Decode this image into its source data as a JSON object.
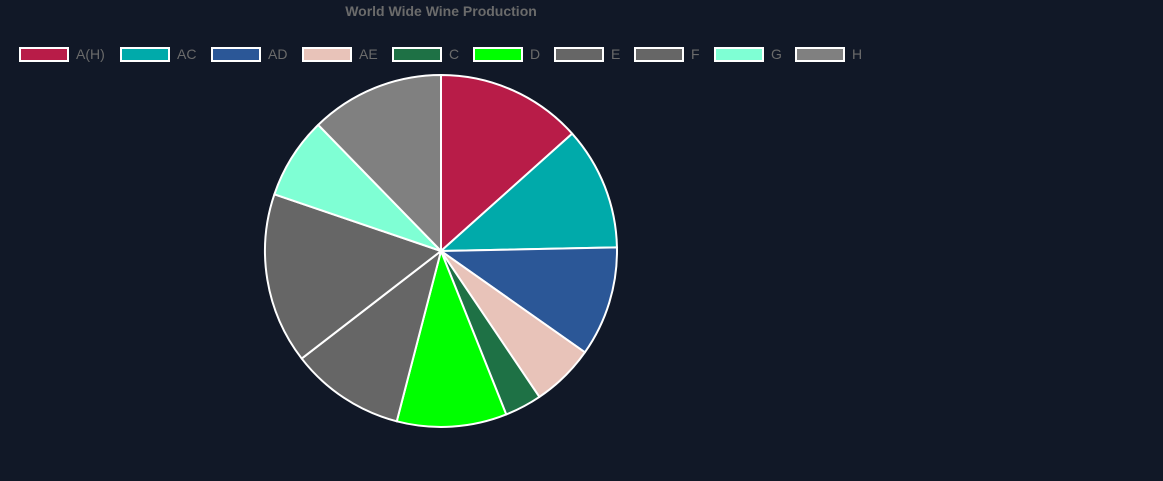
{
  "chart_data": {
    "type": "pie",
    "title": "World Wide Wine Production",
    "legend_position": "top",
    "categories": [
      "A(H)",
      "AC",
      "AD",
      "AE",
      "C",
      "D",
      "E",
      "F",
      "G",
      "H"
    ],
    "values": [
      13.4,
      11.3,
      10.1,
      5.8,
      3.4,
      10.1,
      10.5,
      15.7,
      7.5,
      12.3
    ],
    "colors": [
      "#b81c48",
      "#00aaaa",
      "#2b5797",
      "#e8c3b9",
      "#1e7145",
      "#00ff00",
      "#666666",
      "#666666",
      "#7fffd4",
      "#808080"
    ],
    "border_color": "#ffffff"
  }
}
